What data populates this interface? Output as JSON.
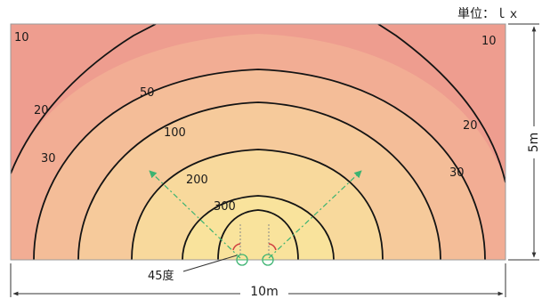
{
  "unit_label": "単位：ｌｘ",
  "dimension_height": "5m",
  "dimension_width": "10m",
  "angle_label": "45度",
  "contours": [
    {
      "value": "10"
    },
    {
      "value": "10"
    },
    {
      "value": "20"
    },
    {
      "value": "20"
    },
    {
      "value": "30"
    },
    {
      "value": "30"
    },
    {
      "value": "50"
    },
    {
      "value": "100"
    },
    {
      "value": "200"
    },
    {
      "value": "300"
    }
  ],
  "colors": {
    "outer": "#ee9d8f",
    "band_30": "#f2ad94",
    "band_50": "#f4bd98",
    "band_100": "#f6ca9b",
    "band_200": "#f8d99c",
    "band_300": "#f9e39c",
    "contour_line": "#141414",
    "beam_guide": "#3cb371",
    "luminaire": "#3cb371",
    "luminaire_mark": "#d04040"
  }
}
